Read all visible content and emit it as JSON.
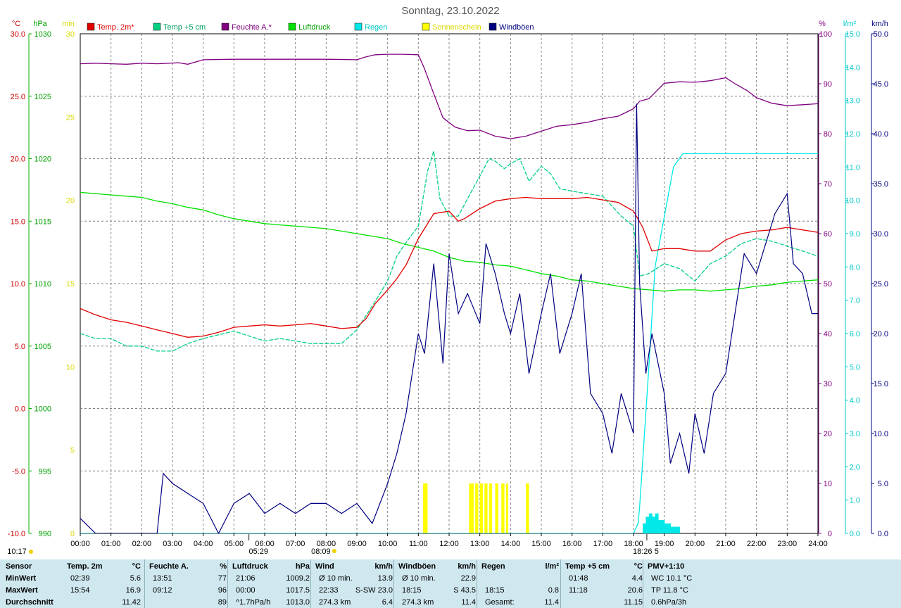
{
  "title": "Sonntag, 23.10.2022",
  "colors": {
    "temp2m": "#e00000",
    "temp5cm": "#00d080",
    "feuchte": "#800080",
    "luftdruck": "#00e000",
    "regen": "#00e8e8",
    "sonne": "#ffff00",
    "wind": "#000080",
    "grid": "#808080",
    "stats_bg": "#cfe7ef"
  },
  "legend": [
    {
      "label": "Temp. 2m*",
      "color": "#e00000",
      "text_color": "#e00000"
    },
    {
      "label": "Temp +5 cm",
      "color": "#00d080",
      "text_color": "#00a060"
    },
    {
      "label": "Feuchte A.*",
      "color": "#800080",
      "text_color": "#800080"
    },
    {
      "label": "Luftdruck",
      "color": "#00e000",
      "text_color": "#00a000"
    },
    {
      "label": "Regen",
      "color": "#00e8e8",
      "text_color": "#00c8c8"
    },
    {
      "label": "Sonnenschein",
      "color": "#ffff00",
      "text_color": "#d8d800"
    },
    {
      "label": "Windböen",
      "color": "#000080",
      "text_color": "#000080"
    }
  ],
  "axes": {
    "temp": {
      "unit": "°C",
      "ticks": [
        "30.0",
        "25.0",
        "20.0",
        "15.0",
        "10.0",
        "5.0",
        "0.0",
        "-5.0",
        "-10.0"
      ]
    },
    "hpa": {
      "unit": "hPa",
      "ticks": [
        "1030",
        "1025",
        "1020",
        "1015",
        "1010",
        "1005",
        "1000",
        "995",
        "990"
      ]
    },
    "min": {
      "unit": "min",
      "ticks": [
        "30",
        "25",
        "20",
        "15",
        "10",
        "5",
        "0"
      ]
    },
    "pct": {
      "unit": "%",
      "ticks": [
        "100",
        "90",
        "80",
        "70",
        "60",
        "50",
        "40",
        "30",
        "20",
        "10",
        "0"
      ]
    },
    "lm2": {
      "unit": "l/m²",
      "ticks": [
        "15.0",
        "14.0",
        "13.0",
        "12.0",
        "11.0",
        "10.0",
        "9.0",
        "8.0",
        "7.0",
        "6.0",
        "5.0",
        "4.0",
        "3.0",
        "2.0",
        "1.0",
        "0.0"
      ]
    },
    "kmh": {
      "unit": "km/h",
      "ticks": [
        "50.0",
        "45.0",
        "40.0",
        "35.0",
        "30.0",
        "25.0",
        "20.0",
        "15.0",
        "10.0",
        "5.0",
        "0.0"
      ]
    },
    "x_ticks": [
      "00:00",
      "01:00",
      "02:00",
      "03:00",
      "04:00",
      "05:00",
      "06:00",
      "07:00",
      "08:00",
      "09:00",
      "10:00",
      "11:00",
      "12:00",
      "13:00",
      "14:00",
      "15:00",
      "16:00",
      "17:00",
      "18:00",
      "19:00",
      "20:00",
      "21:00",
      "22:00",
      "23:00",
      "24:00"
    ]
  },
  "markers": {
    "sunrise": "05:29",
    "morning": "08:09",
    "event": "18:26",
    "event_suffix": "5",
    "daylength": "10:17"
  },
  "chart_data": {
    "type": "line",
    "x_unit": "hour of day",
    "xlim": [
      0,
      24
    ],
    "series": [
      {
        "name": "Temp. 2m*",
        "axis": "temp",
        "x": [
          0,
          0.5,
          1,
          1.5,
          2,
          2.5,
          3,
          3.5,
          4,
          4.5,
          5,
          5.5,
          6,
          6.5,
          7,
          7.5,
          8,
          8.5,
          9,
          9.3,
          9.6,
          10,
          10.3,
          10.6,
          11,
          11.5,
          12,
          12.3,
          12.5,
          13,
          13.5,
          14,
          14.5,
          15,
          15.5,
          16,
          16.5,
          17,
          17.5,
          18,
          18.3,
          18.6,
          19,
          19.5,
          20,
          20.5,
          21,
          21.5,
          22,
          22.5,
          23,
          23.5,
          24
        ],
        "y": [
          8.0,
          7.5,
          7.1,
          6.9,
          6.6,
          6.3,
          6.0,
          5.7,
          5.8,
          6.1,
          6.5,
          6.6,
          6.7,
          6.6,
          6.7,
          6.8,
          6.6,
          6.4,
          6.5,
          7.2,
          8.4,
          9.5,
          10.4,
          11.5,
          13.6,
          15.6,
          15.8,
          15.0,
          15.2,
          16.0,
          16.6,
          16.8,
          16.9,
          16.8,
          16.8,
          16.8,
          16.9,
          16.7,
          16.5,
          15.8,
          14.5,
          12.6,
          12.8,
          12.8,
          12.6,
          12.6,
          13.5,
          14.0,
          14.2,
          14.3,
          14.5,
          14.3,
          14.1
        ]
      },
      {
        "name": "Temp +5 cm",
        "axis": "temp",
        "x": [
          0,
          0.5,
          1,
          1.5,
          2,
          2.5,
          3,
          3.5,
          4,
          4.5,
          5,
          5.5,
          6,
          6.5,
          7,
          7.5,
          8,
          8.5,
          9,
          9.5,
          10,
          10.3,
          10.6,
          11,
          11.3,
          11.5,
          11.7,
          12,
          12.3,
          12.6,
          13,
          13.3,
          13.5,
          13.8,
          14,
          14.3,
          14.6,
          15,
          15.3,
          15.6,
          16,
          16.5,
          17,
          17.3,
          17.6,
          18,
          18.2,
          18.5,
          19,
          19.5,
          20,
          20.5,
          21,
          21.5,
          22,
          22.5,
          23,
          23.5,
          24
        ],
        "y": [
          6.0,
          5.6,
          5.6,
          5.0,
          5.0,
          4.6,
          4.6,
          5.2,
          5.6,
          5.9,
          6.2,
          5.8,
          5.4,
          5.6,
          5.4,
          5.2,
          5.2,
          5.2,
          6.3,
          8.2,
          10.2,
          12.2,
          13.3,
          14.6,
          19.0,
          20.6,
          16.8,
          15.4,
          15.4,
          16.8,
          18.6,
          20.0,
          19.8,
          19.2,
          19.6,
          20.0,
          18.2,
          19.4,
          18.8,
          17.6,
          17.4,
          17.2,
          17.0,
          16.2,
          15.4,
          14.6,
          10.6,
          10.8,
          11.6,
          11.2,
          10.2,
          11.6,
          12.2,
          13.2,
          13.6,
          13.4,
          13.0,
          12.6,
          12.2
        ]
      },
      {
        "name": "Feuchte A.*",
        "axis": "pct",
        "x": [
          0,
          0.5,
          1,
          1.5,
          2,
          2.5,
          2.9,
          3.2,
          3.5,
          4,
          5,
          6,
          7,
          8,
          9,
          9.3,
          9.6,
          10,
          10.5,
          11,
          11.2,
          11.5,
          11.8,
          12.2,
          12.6,
          13,
          13.5,
          14,
          14.5,
          15,
          15.5,
          16,
          16.5,
          17,
          17.5,
          18,
          18.2,
          18.5,
          19,
          19.5,
          20,
          20.5,
          21,
          21.3,
          21.7,
          22,
          22.5,
          23,
          23.5,
          24
        ],
        "y": [
          94.0,
          94.1,
          94.0,
          93.9,
          94.1,
          94.0,
          94.1,
          94.2,
          93.9,
          94.8,
          94.9,
          94.9,
          94.9,
          94.9,
          94.8,
          95.4,
          95.8,
          95.9,
          95.9,
          95.8,
          93.0,
          88.0,
          83.2,
          81.3,
          80.6,
          80.7,
          79.5,
          79.0,
          79.5,
          80.5,
          81.5,
          81.8,
          82.3,
          83.0,
          83.5,
          85.0,
          86.5,
          87.0,
          90.1,
          90.4,
          90.3,
          90.6,
          91.2,
          90.0,
          88.6,
          87.2,
          86.1,
          85.6,
          85.8,
          86.0
        ]
      },
      {
        "name": "Luftdruck",
        "axis": "hpa",
        "x": [
          0,
          0.5,
          1,
          1.5,
          2,
          2.5,
          3,
          3.5,
          4,
          4.5,
          5,
          5.5,
          6,
          6.5,
          7,
          7.5,
          8,
          8.5,
          9,
          9.5,
          10,
          10.5,
          11,
          11.5,
          12,
          12.5,
          13,
          13.5,
          14,
          14.5,
          15,
          15.5,
          16,
          16.5,
          17,
          17.5,
          18,
          18.5,
          19,
          19.5,
          20,
          20.5,
          21,
          21.5,
          22,
          22.5,
          23,
          23.5,
          24
        ],
        "y": [
          1017.3,
          1017.2,
          1017.1,
          1017.0,
          1016.9,
          1016.6,
          1016.4,
          1016.1,
          1015.9,
          1015.5,
          1015.2,
          1015.0,
          1014.8,
          1014.7,
          1014.6,
          1014.5,
          1014.4,
          1014.2,
          1014.0,
          1013.8,
          1013.6,
          1013.2,
          1012.9,
          1012.6,
          1012.1,
          1011.8,
          1011.7,
          1011.5,
          1011.4,
          1011.1,
          1010.8,
          1010.6,
          1010.3,
          1010.2,
          1010.0,
          1009.8,
          1009.6,
          1009.5,
          1009.4,
          1009.5,
          1009.5,
          1009.4,
          1009.5,
          1009.6,
          1009.8,
          1009.9,
          1010.1,
          1010.2,
          1010.3
        ]
      },
      {
        "name": "Regen",
        "axis": "lm2",
        "x": [
          0,
          18.0,
          18.15,
          18.2,
          18.3,
          18.5,
          18.7,
          19.0,
          19.3,
          19.6,
          20,
          22,
          24
        ],
        "y": [
          0,
          0,
          0.3,
          0.8,
          2.2,
          5.0,
          8.0,
          9.5,
          11.0,
          11.4,
          11.4,
          11.4,
          11.4
        ]
      },
      {
        "name": "Sonnenschein",
        "axis": "min",
        "type": "bar",
        "bars": [
          [
            11.15,
            11.3
          ],
          [
            12.65,
            12.7
          ],
          [
            12.7,
            12.8
          ],
          [
            12.85,
            12.95
          ],
          [
            13.0,
            13.1
          ],
          [
            13.15,
            13.25
          ],
          [
            13.3,
            13.4
          ],
          [
            13.5,
            13.6
          ],
          [
            13.7,
            13.8
          ],
          [
            13.85,
            13.92
          ],
          [
            14.5,
            14.6
          ]
        ],
        "height": 3
      },
      {
        "name": "Windböen",
        "axis": "kmh",
        "x": [
          0,
          0.5,
          1,
          1.5,
          2,
          2.5,
          2.7,
          3,
          3.5,
          4,
          4.5,
          5,
          5.5,
          6,
          6.5,
          7,
          7.5,
          8,
          8.5,
          9,
          9.5,
          10,
          10.3,
          10.6,
          11,
          11.2,
          11.5,
          11.8,
          12,
          12.3,
          12.6,
          13,
          13.2,
          13.5,
          13.8,
          14,
          14.3,
          14.6,
          15,
          15.3,
          15.6,
          16,
          16.3,
          16.6,
          17,
          17.3,
          17.6,
          18,
          18.1,
          18.2,
          18.4,
          18.6,
          19,
          19.2,
          19.5,
          19.8,
          20,
          20.3,
          20.6,
          21,
          21.3,
          21.6,
          22,
          22.3,
          22.6,
          23,
          23.2,
          23.5,
          23.8,
          24
        ],
        "y": [
          1.5,
          0,
          0,
          0,
          0,
          0,
          6,
          5,
          4,
          3,
          0,
          3,
          4,
          2,
          3,
          2,
          3,
          3,
          2,
          3,
          1,
          5,
          8,
          12,
          20,
          18,
          27,
          17,
          28,
          22,
          24,
          21,
          29,
          26,
          22,
          20,
          24,
          16,
          22,
          26,
          18,
          22,
          26,
          14,
          12,
          8,
          14,
          10,
          43,
          25,
          16,
          20,
          14,
          7,
          10,
          6,
          12,
          8,
          14,
          16,
          22,
          28,
          26,
          29,
          32,
          34,
          27,
          26,
          22,
          22
        ]
      }
    ]
  },
  "stats": {
    "row_labels": [
      "Sensor",
      "MinWert",
      "MaxWert",
      "Durchschnitt"
    ],
    "sections": [
      {
        "title": "Temp. 2m",
        "unit": "°C",
        "rows": [
          [
            "02:39",
            "5.6"
          ],
          [
            "15:54",
            "16.9"
          ],
          [
            "",
            "11.42"
          ]
        ]
      },
      {
        "title": "Feuchte A.",
        "unit": "%",
        "rows": [
          [
            "13:51",
            "77"
          ],
          [
            "09:12",
            "96"
          ],
          [
            "",
            "89"
          ]
        ]
      },
      {
        "title": "Luftdruck",
        "unit": "hPa",
        "rows": [
          [
            "21:06",
            "1009.2"
          ],
          [
            "00:00",
            "1017.5"
          ],
          [
            "^1.7hPa/h",
            "1013.0"
          ]
        ]
      },
      {
        "title": "Wind",
        "unit": "km/h",
        "rows": [
          [
            "Ø 10 min.",
            "13.9"
          ],
          [
            "22:33",
            "S-SW 23.0"
          ],
          [
            "274.3 km",
            "6.4"
          ]
        ]
      },
      {
        "title": "Windböen",
        "unit": "km/h",
        "rows": [
          [
            "Ø 10 min.",
            "22.9"
          ],
          [
            "18:15",
            "S 43.5"
          ],
          [
            "274.3 km",
            "11.4"
          ]
        ]
      },
      {
        "title": "Regen",
        "unit": "l/m²",
        "rows": [
          [
            "",
            ""
          ],
          [
            "18:15",
            "0.8"
          ],
          [
            "Gesamt:",
            "11.4"
          ]
        ]
      },
      {
        "title": "Temp +5 cm",
        "unit": "°C",
        "rows": [
          [
            "01:48",
            "4.4"
          ],
          [
            "11:18",
            "20.6"
          ],
          [
            "",
            "11.15"
          ]
        ]
      },
      {
        "title": "PMV+1:10",
        "unit": "",
        "rows": [
          [
            "WC 10.1 °C",
            ""
          ],
          [
            "TP 11.8 °C",
            ""
          ],
          [
            "0.6hPa/3h",
            ""
          ]
        ]
      }
    ]
  }
}
